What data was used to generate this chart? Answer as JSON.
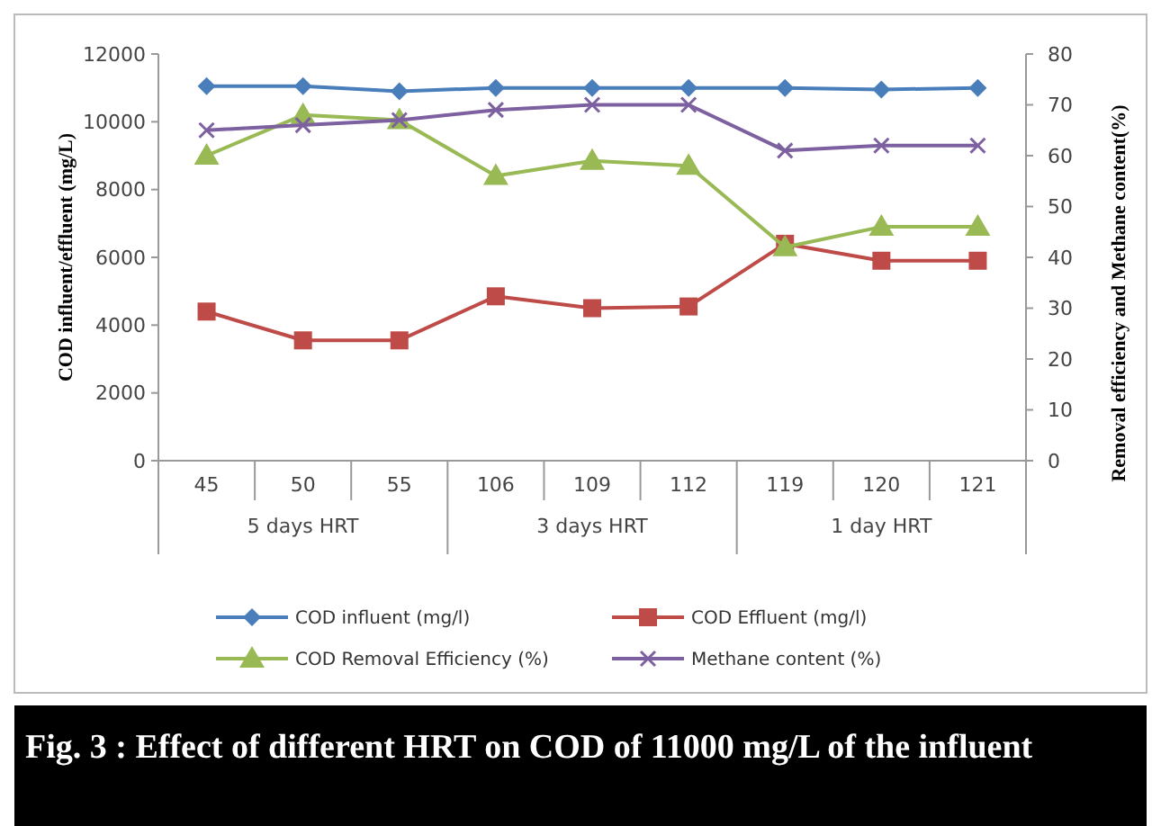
{
  "chart_data": {
    "type": "line",
    "title": "Fig. 3 :  Effect of different HRT on COD of 11000 mg/L of the influent",
    "ylabel": "COD influent/effluent (mg/L)",
    "y2label": "Removal efficiency and Methane content(%)",
    "categories": [
      "45",
      "50",
      "55",
      "106",
      "109",
      "112",
      "119",
      "120",
      "121"
    ],
    "annotations": [
      "5 days HRT",
      "3 days HRT",
      "1 day HRT"
    ],
    "ylim": [
      0,
      12000
    ],
    "yticks": [
      0,
      2000,
      4000,
      6000,
      8000,
      10000,
      12000
    ],
    "y2lim": [
      0,
      80
    ],
    "y2ticks": [
      0,
      10,
      20,
      30,
      40,
      50,
      60,
      70,
      80
    ],
    "legend": "bottom",
    "grid": false,
    "series": [
      {
        "name": "COD influent (mg/l)",
        "color": "#4a7ebb",
        "marker": "diamond",
        "values": [
          11050,
          11050,
          10900,
          11000,
          11000,
          11000,
          11000,
          10950,
          11000
        ]
      },
      {
        "name": "COD Effluent (mg/l)",
        "color": "#be4b48",
        "marker": "square",
        "values": [
          4400,
          3550,
          3550,
          4850,
          4500,
          4550,
          6400,
          5900,
          5900
        ]
      },
      {
        "name": "COD Removal Efficiency (%)",
        "color": "#98b954",
        "marker": "triangle",
        "axis": "y2",
        "values": [
          60,
          68,
          67,
          56,
          59,
          58,
          42,
          46,
          46
        ]
      },
      {
        "name": "Methane content (%)",
        "color": "#7d60a0",
        "marker": "cross",
        "axis": "y2",
        "values": [
          65,
          66,
          67,
          69,
          70,
          70,
          61,
          62,
          62
        ]
      }
    ]
  }
}
